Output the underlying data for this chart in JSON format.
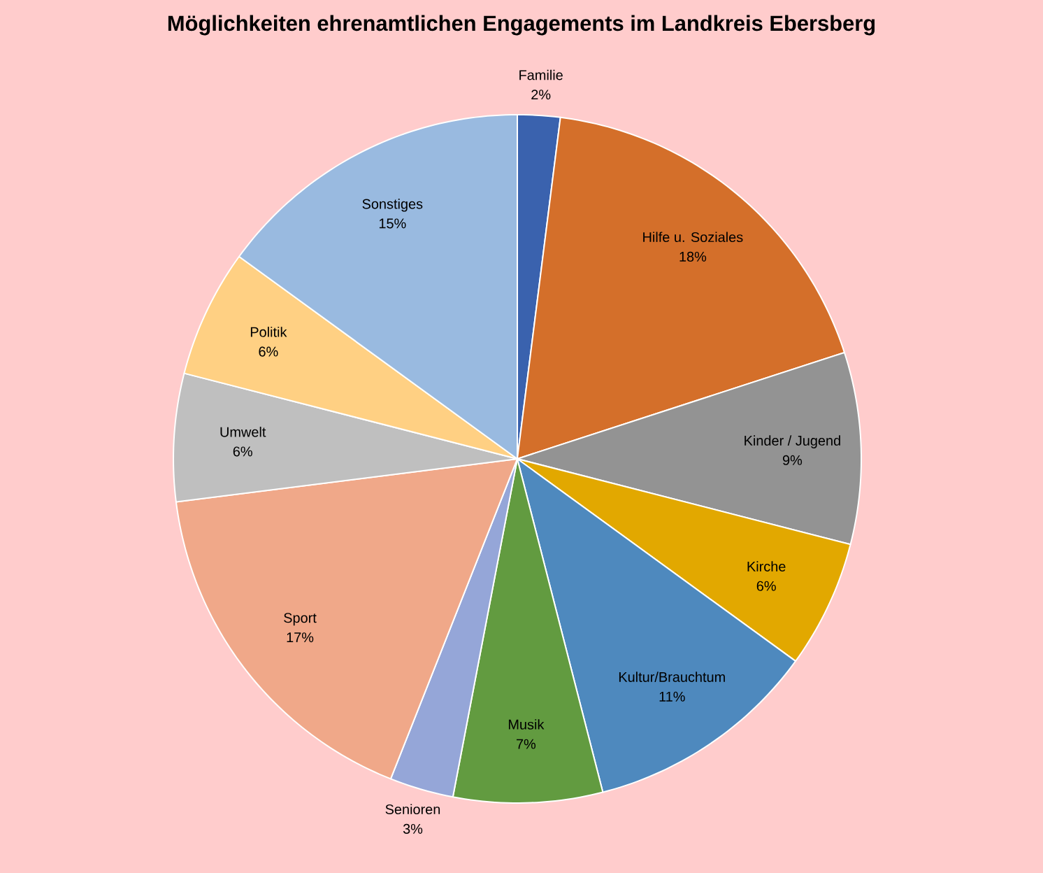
{
  "chart_data": {
    "type": "pie",
    "title": "Möglichkeiten ehrenamtlichen Engagements im Landkreis Ebersberg",
    "categories": [
      "Familie",
      "Hilfe u. Soziales",
      "Kinder / Jugend",
      "Kirche",
      "Kultur/Brauchtum",
      "Musik",
      "Senioren",
      "Sport",
      "Umwelt",
      "Politik",
      "Sonstiges"
    ],
    "values": [
      2,
      18,
      9,
      6,
      11,
      7,
      3,
      17,
      6,
      6,
      15
    ],
    "value_labels": [
      "2%",
      "18%",
      "9%",
      "6%",
      "11%",
      "7%",
      "3%",
      "17%",
      "6%",
      "6%",
      "15%"
    ],
    "colors": [
      "#3a62ae",
      "#d46f2a",
      "#939393",
      "#e2a800",
      "#4e89be",
      "#629b40",
      "#95a6d8",
      "#f0a889",
      "#bfbfbf",
      "#ffd083",
      "#99bae0"
    ]
  }
}
